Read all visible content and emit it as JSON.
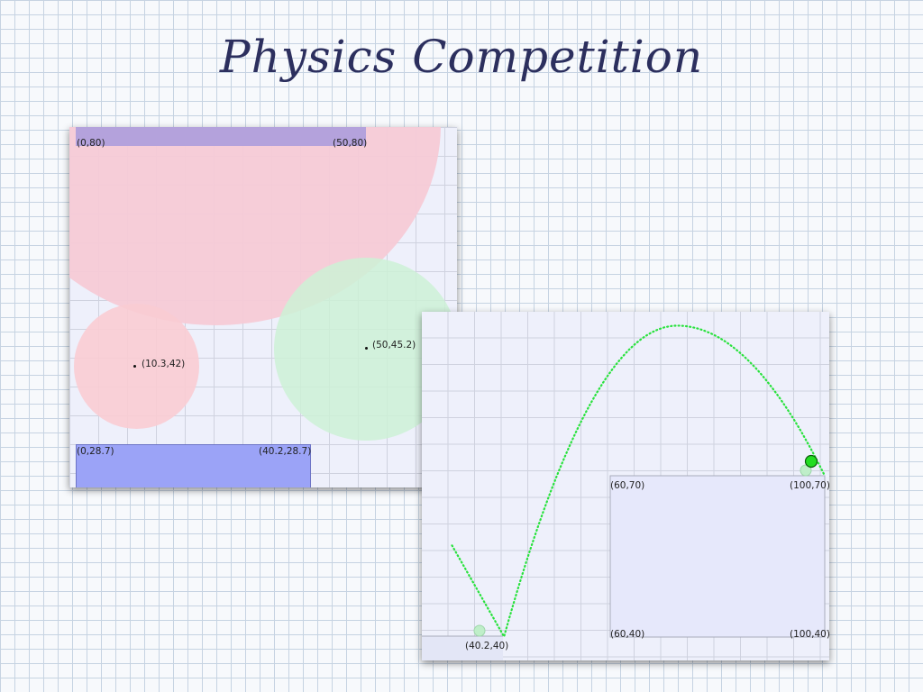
{
  "title": "Physics Competition",
  "colors": {
    "big_red_circle": "#f6cad6",
    "small_red_circle": "#f9ccd3",
    "green_circle": "#cdf1d6",
    "purple_bar": "#b4a2dc",
    "blue_block": "#9ba3f7",
    "trajectory": "#29e23d",
    "ball": "#22dd22"
  },
  "left_panel": {
    "top_bar": {
      "left_label": "(0,80)",
      "right_label": "(50,80)"
    },
    "small_red_ball": {
      "label": "(10.3,42)"
    },
    "green_ball": {
      "label": "(50,45.2)"
    },
    "bottom_block": {
      "left_label": "(0,28.7)",
      "right_label": "(40.2,28.7)"
    }
  },
  "right_panel": {
    "left_edge_point": {
      "x": 30.5,
      "y": 57
    },
    "landing_point": {
      "label": "(40.2,40)",
      "x": 40.2,
      "y": 40
    },
    "apex_point": {
      "x": 72.5,
      "y": 98
    },
    "end_point": {
      "label": "(100,70)",
      "x": 100,
      "y": 70
    },
    "box": {
      "top_left": "(60,70)",
      "top_right": "(100,70)",
      "bottom_left": "(60,40)",
      "bottom_right": "(100,40)"
    },
    "ball_icon": "filled-circle"
  }
}
